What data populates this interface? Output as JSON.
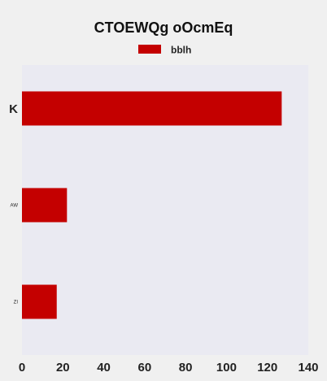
{
  "chart_data": {
    "type": "bar",
    "orientation": "horizontal",
    "title": "CTOEWQg oOcmEq",
    "xlabel": "",
    "ylabel": "",
    "categories": [
      "K",
      "AW",
      "ZI"
    ],
    "series": [
      {
        "name": "bblh",
        "values": [
          127,
          22,
          17
        ]
      }
    ],
    "xlim": [
      0,
      140
    ],
    "xticks": [
      "0",
      "20",
      "40",
      "60",
      "80",
      "100",
      "120",
      "140"
    ],
    "grid": false,
    "legend_position": "top-center",
    "colors": {
      "bar": "#c40000",
      "plot_background": "#eaeaf2",
      "page_background": "#f0f0f0"
    }
  }
}
